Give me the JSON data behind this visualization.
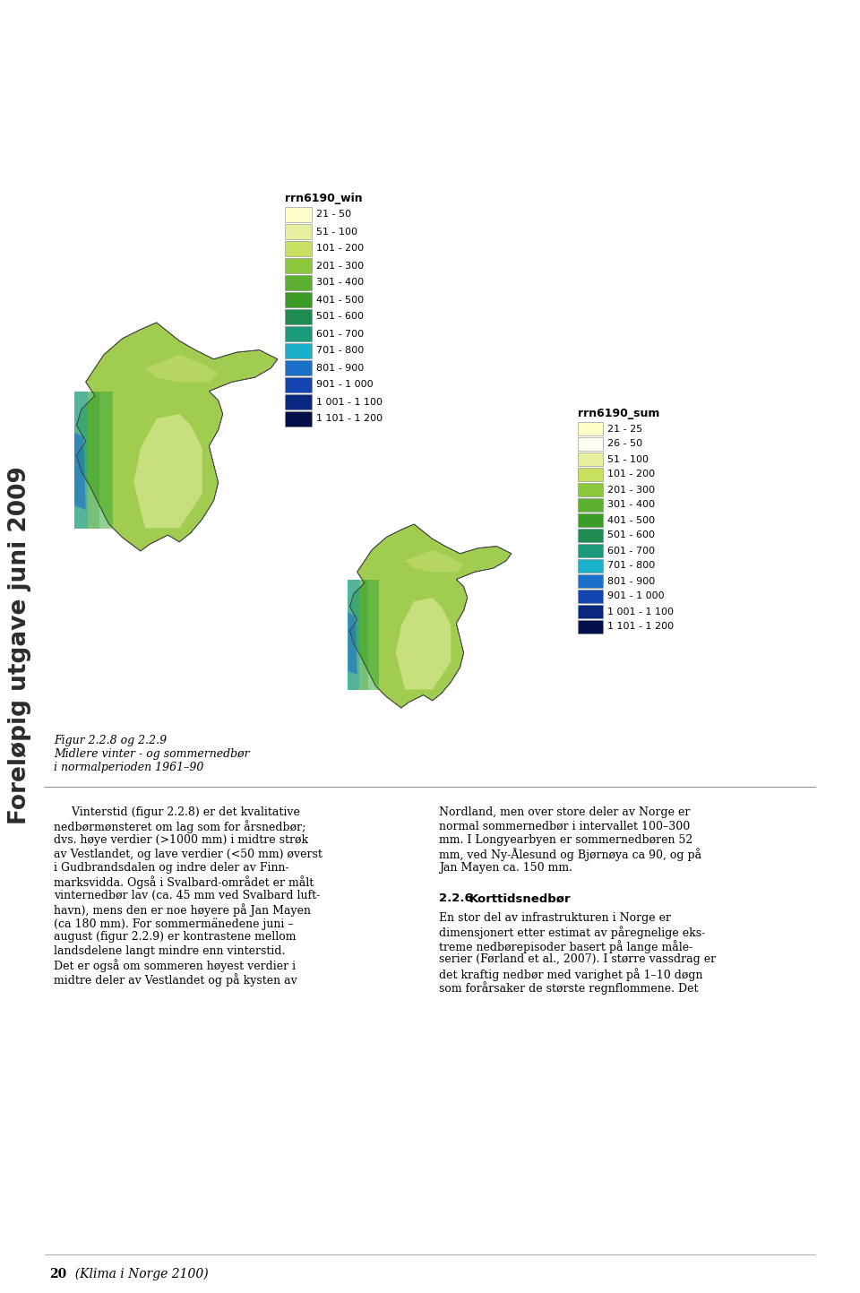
{
  "background_color": "#ffffff",
  "page_width": 9.6,
  "page_height": 14.43,
  "sidebar_text": "Foreløpig utgave juni 2009",
  "sidebar_color": "#2c2c2c",
  "legend1_title": "rrn6190_win",
  "legend1_labels": [
    "21 - 50",
    "51 - 100",
    "101 - 200",
    "201 - 300",
    "301 - 400",
    "401 - 500",
    "501 - 600",
    "601 - 700",
    "701 - 800",
    "801 - 900",
    "901 - 1 000",
    "1 001 - 1 100",
    "1 101 - 1 200"
  ],
  "legend1_colors": [
    "#ffffc8",
    "#e8f0a0",
    "#c8e060",
    "#8cc83c",
    "#5cb030",
    "#3c9c28",
    "#1e8c50",
    "#1a9a7a",
    "#1ab0c8",
    "#1a70c8",
    "#1444b0",
    "#0a2880",
    "#05104a"
  ],
  "legend2_title": "rrn6190_sum",
  "legend2_labels": [
    "21 - 25",
    "26 - 50",
    "51 - 100",
    "101 - 200",
    "201 - 300",
    "301 - 400",
    "401 - 500",
    "501 - 600",
    "601 - 700",
    "701 - 800",
    "801 - 900",
    "901 - 1 000",
    "1 001 - 1 100",
    "1 101 - 1 200"
  ],
  "legend2_colors": [
    "#ffffc8",
    "#fffff0",
    "#e8f0a0",
    "#c8e060",
    "#8cc83c",
    "#5cb030",
    "#3c9c28",
    "#1e8c50",
    "#1a9a7a",
    "#1ab0c8",
    "#1a70c8",
    "#1444b0",
    "#0a2880",
    "#05104a"
  ],
  "figure_caption_title": "Figur 2.2.8 og 2.2.9",
  "figure_caption_line1": "Midlere vinter - og sommernedbør",
  "figure_caption_line2": "i normalperioden 1961–90",
  "body_col1_lines": [
    "     Vinterstid (figur 2.2.8) er det kvalitative",
    "nedbørmønsteret om lag som for årsnedbør;",
    "dvs. høye verdier (>1000 mm) i midtre strøk",
    "av Vestlandet, og lave verdier (<50 mm) øverst",
    "i Gudbrandsdalen og indre deler av Finn-",
    "marksvidda. Også i Svalbard-området er målt",
    "vinternedbør lav (ca. 45 mm ved Svalbard luft-",
    "havn), mens den er noe høyere på Jan Mayen",
    "(ca 180 mm). For sommermänedene juni –",
    "august (figur 2.2.9) er kontrastene mellom",
    "landsdelene langt mindre enn vinterstid.",
    "Det er også om sommeren høyest verdier i",
    "midtre deler av Vestlandet og på kysten av"
  ],
  "body_col2_lines": [
    "Nordland, men over store deler av Norge er",
    "normal sommernedbør i intervallet 100–300",
    "mm. I Longyearbyen er sommernedbøren 52",
    "mm, ved Ny-Ålesund og Bjørnøya ca 90, og på",
    "Jan Mayen ca. 150 mm."
  ],
  "section_header_num": "2.2.6",
  "section_header_title": "   Korttidsnedbør",
  "body_col2b_lines": [
    "En stor del av infrastrukturen i Norge er",
    "dimensjonert etter estimat av påregnelige eks-",
    "treme nedbørepisoder basert på lange måle-",
    "serier (Førland et al., 2007). I større vassdrag er",
    "det kraftig nedbør med varighet på 1–10 døgn",
    "som forårsaker de største regnflommene. Det"
  ],
  "footer_text": "20",
  "footer_sub": "  (Klima i Norge 2100)"
}
